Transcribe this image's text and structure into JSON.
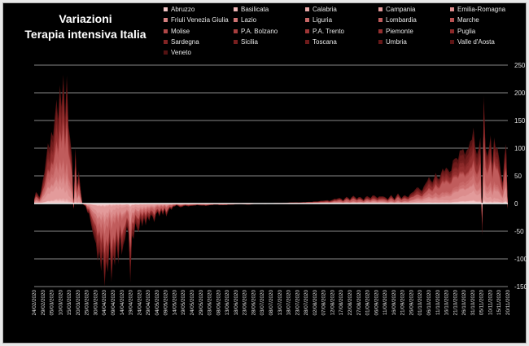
{
  "title": {
    "line1": "Variazioni",
    "line2": "Terapia intensiva Italia"
  },
  "colors": {
    "background": "#000000",
    "frame": "#b0b0b0",
    "gridline": "#b4b4b4",
    "zeroline": "#f0f0f0",
    "text": "#ffffff",
    "series": [
      "#f3c6c6",
      "#eeb7b7",
      "#e8a9a9",
      "#e39b9b",
      "#dc8d8d",
      "#d68080",
      "#cf7373",
      "#c86767",
      "#c05c5c",
      "#b85151",
      "#b04747",
      "#a73e3e",
      "#9e3636",
      "#952f2f",
      "#8b2929",
      "#822424",
      "#781f1f",
      "#6f1b1b",
      "#661818",
      "#5d1515",
      "#541212"
    ]
  },
  "chart_data": {
    "type": "area",
    "stacked": true,
    "title": "Variazioni Terapia intensiva Italia",
    "xlabel": "",
    "ylabel": "",
    "y_axis_side": "right",
    "ylim": [
      -150,
      250
    ],
    "yticks": [
      250,
      200,
      150,
      100,
      50,
      0,
      -50,
      -100,
      -150
    ],
    "gridlines": true,
    "legend_position": "top",
    "x_tick_labels": [
      "24/02/2020",
      "29/02/2020",
      "05/03/2020",
      "10/03/2020",
      "15/03/2020",
      "20/03/2020",
      "25/03/2020",
      "30/03/2020",
      "04/04/2020",
      "09/04/2020",
      "14/04/2020",
      "19/04/2020",
      "24/04/2020",
      "29/04/2020",
      "04/05/2020",
      "09/05/2020",
      "14/05/2020",
      "19/05/2020",
      "24/05/2020",
      "29/05/2020",
      "03/06/2020",
      "08/06/2020",
      "13/06/2020",
      "18/06/2020",
      "23/06/2020",
      "28/06/2020",
      "03/07/2020",
      "08/07/2020",
      "13/07/2020",
      "18/07/2020",
      "23/07/2020",
      "28/07/2020",
      "02/08/2020",
      "07/08/2020",
      "12/08/2020",
      "17/08/2020",
      "22/08/2020",
      "27/08/2020",
      "01/09/2020",
      "06/09/2020",
      "11/09/2020",
      "16/09/2020",
      "21/09/2020",
      "26/09/2020",
      "01/10/2020",
      "06/10/2020",
      "11/10/2020",
      "16/10/2020",
      "21/10/2020",
      "26/10/2020",
      "31/10/2020",
      "05/11/2020",
      "10/11/2020",
      "15/11/2020",
      "20/11/2020"
    ],
    "series_names": [
      "Abruzzo",
      "Basilicata",
      "Calabria",
      "Campania",
      "Emilia-Romagna",
      "Friuli Venezia Giulia",
      "Lazio",
      "Liguria",
      "Lombardia",
      "Marche",
      "Molise",
      "P.A. Bolzano",
      "P.A. Trento",
      "Piemonte",
      "Puglia",
      "Sardegna",
      "Sicilia",
      "Toscana",
      "Umbria",
      "Valle d'Aosta",
      "Veneto"
    ],
    "series_weights": [
      0.03,
      0.01,
      0.01,
      0.1,
      0.12,
      0.03,
      0.08,
      0.05,
      0.2,
      0.04,
      0.01,
      0.02,
      0.02,
      0.09,
      0.06,
      0.02,
      0.05,
      0.08,
      0.02,
      0.01,
      0.08
    ],
    "total_keypoints": [
      [
        0,
        8
      ],
      [
        1,
        20
      ],
      [
        2,
        18
      ],
      [
        3,
        12
      ],
      [
        4,
        22
      ],
      [
        5,
        40
      ],
      [
        6,
        60
      ],
      [
        7,
        85
      ],
      [
        8,
        105
      ],
      [
        9,
        95
      ],
      [
        10,
        140
      ],
      [
        11,
        120
      ],
      [
        12,
        150
      ],
      [
        13,
        185
      ],
      [
        14,
        165
      ],
      [
        15,
        205
      ],
      [
        16,
        170
      ],
      [
        17,
        235
      ],
      [
        18,
        165
      ],
      [
        19,
        215
      ],
      [
        20,
        140
      ],
      [
        21,
        120
      ],
      [
        22,
        90
      ],
      [
        23,
        -10
      ],
      [
        24,
        105
      ],
      [
        25,
        30
      ],
      [
        26,
        60
      ],
      [
        27,
        25
      ],
      [
        28,
        0
      ],
      [
        29,
        -3
      ],
      [
        30,
        -5
      ],
      [
        31,
        -15
      ],
      [
        32,
        -20
      ],
      [
        33,
        -35
      ],
      [
        34,
        -50
      ],
      [
        35,
        -60
      ],
      [
        36,
        -80
      ],
      [
        37,
        -100
      ],
      [
        38,
        -85
      ],
      [
        39,
        -120
      ],
      [
        40,
        -95
      ],
      [
        41,
        -140
      ],
      [
        42,
        -105
      ],
      [
        43,
        -125
      ],
      [
        44,
        -75
      ],
      [
        45,
        -130
      ],
      [
        46,
        -95
      ],
      [
        47,
        -115
      ],
      [
        48,
        -70
      ],
      [
        49,
        -100
      ],
      [
        50,
        -60
      ],
      [
        51,
        -95
      ],
      [
        52,
        -75
      ],
      [
        53,
        -60
      ],
      [
        54,
        -45
      ],
      [
        55,
        -55
      ],
      [
        56,
        -140
      ],
      [
        57,
        -55
      ],
      [
        58,
        -70
      ],
      [
        59,
        -35
      ],
      [
        60,
        -45
      ],
      [
        61,
        -50
      ],
      [
        62,
        -30
      ],
      [
        63,
        -40
      ],
      [
        64,
        -25
      ],
      [
        65,
        -40
      ],
      [
        66,
        -25
      ],
      [
        67,
        -30
      ],
      [
        68,
        -20
      ],
      [
        69,
        -25
      ],
      [
        70,
        -35
      ],
      [
        71,
        -18
      ],
      [
        72,
        -15
      ],
      [
        73,
        -25
      ],
      [
        74,
        -12
      ],
      [
        75,
        -20
      ],
      [
        76,
        -10
      ],
      [
        77,
        -25
      ],
      [
        78,
        -14
      ],
      [
        79,
        -8
      ],
      [
        80,
        -12
      ],
      [
        81,
        -6
      ],
      [
        82,
        -5
      ],
      [
        83,
        -3
      ],
      [
        85,
        -7
      ],
      [
        88,
        -4
      ],
      [
        90,
        -5
      ],
      [
        95,
        -3
      ],
      [
        100,
        -4
      ],
      [
        105,
        -2
      ],
      [
        110,
        -3
      ],
      [
        115,
        -2
      ],
      [
        120,
        -1
      ],
      [
        125,
        -2
      ],
      [
        130,
        0
      ],
      [
        135,
        -1
      ],
      [
        140,
        1
      ],
      [
        145,
        1
      ],
      [
        150,
        2
      ],
      [
        155,
        2
      ],
      [
        160,
        3
      ],
      [
        165,
        4
      ],
      [
        170,
        6
      ],
      [
        172,
        5
      ],
      [
        175,
        8
      ],
      [
        178,
        10
      ],
      [
        180,
        6
      ],
      [
        182,
        12
      ],
      [
        184,
        8
      ],
      [
        186,
        14
      ],
      [
        188,
        9
      ],
      [
        190,
        12
      ],
      [
        192,
        7
      ],
      [
        194,
        14
      ],
      [
        196,
        10
      ],
      [
        198,
        16
      ],
      [
        200,
        10
      ],
      [
        202,
        14
      ],
      [
        204,
        12
      ],
      [
        206,
        8
      ],
      [
        208,
        15
      ],
      [
        210,
        8
      ],
      [
        212,
        18
      ],
      [
        214,
        10
      ],
      [
        216,
        15
      ],
      [
        218,
        12
      ],
      [
        220,
        20
      ],
      [
        222,
        25
      ],
      [
        224,
        30
      ],
      [
        226,
        22
      ],
      [
        228,
        38
      ],
      [
        230,
        45
      ],
      [
        232,
        40
      ],
      [
        234,
        52
      ],
      [
        236,
        45
      ],
      [
        238,
        60
      ],
      [
        240,
        65
      ],
      [
        242,
        55
      ],
      [
        244,
        75
      ],
      [
        246,
        82
      ],
      [
        248,
        90
      ],
      [
        250,
        100
      ],
      [
        252,
        88
      ],
      [
        254,
        115
      ],
      [
        256,
        125
      ],
      [
        258,
        90
      ],
      [
        260,
        110
      ],
      [
        261,
        -65
      ],
      [
        262,
        195
      ],
      [
        263,
        100
      ],
      [
        264,
        80
      ],
      [
        265,
        110
      ],
      [
        266,
        120
      ],
      [
        267,
        65
      ],
      [
        268,
        115
      ],
      [
        269,
        110
      ],
      [
        270,
        95
      ],
      [
        271,
        80
      ],
      [
        272,
        55
      ],
      [
        273,
        40
      ],
      [
        274,
        80
      ],
      [
        275,
        108
      ],
      [
        276,
        -12
      ]
    ],
    "total_days": 277
  },
  "legend": [
    {
      "label": "Abruzzo"
    },
    {
      "label": "Basilicata"
    },
    {
      "label": "Calabria"
    },
    {
      "label": "Campania"
    },
    {
      "label": "Emilia-Romagna"
    },
    {
      "label": "Friuli Venezia Giulia"
    },
    {
      "label": "Lazio"
    },
    {
      "label": "Liguria"
    },
    {
      "label": "Lombardia"
    },
    {
      "label": "Marche"
    },
    {
      "label": "Molise"
    },
    {
      "label": "P.A. Bolzano"
    },
    {
      "label": "P.A. Trento"
    },
    {
      "label": "Piemonte"
    },
    {
      "label": "Puglia"
    },
    {
      "label": "Sardegna"
    },
    {
      "label": "Sicilia"
    },
    {
      "label": "Toscana"
    },
    {
      "label": "Umbria"
    },
    {
      "label": "Valle d'Aosta"
    },
    {
      "label": "Veneto"
    }
  ]
}
